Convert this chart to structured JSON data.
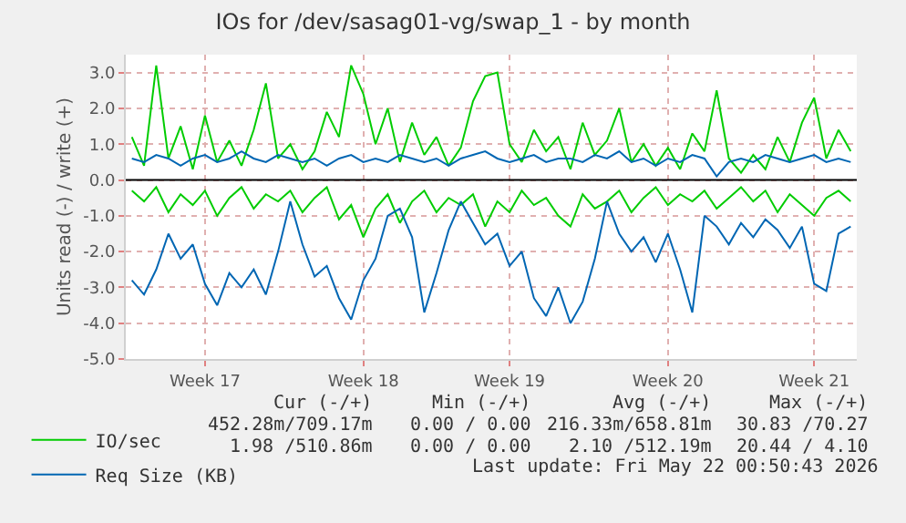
{
  "chart_data": {
    "type": "line",
    "title": "IOs for /dev/sasag01-vg/swap_1 - by month",
    "ylabel": "Units read (-) / write (+)",
    "categories": [
      null,
      null,
      null,
      null,
      null,
      null,
      "Week 17",
      null,
      null,
      null,
      null,
      null,
      null,
      null,
      null,
      null,
      null,
      null,
      null,
      "Week 18",
      null,
      null,
      null,
      null,
      null,
      null,
      null,
      null,
      null,
      null,
      null,
      "Week 19",
      null,
      null,
      null,
      null,
      null,
      null,
      null,
      null,
      null,
      null,
      null,
      null,
      "Week 20",
      null,
      null,
      null,
      null,
      null,
      null,
      null,
      null,
      null,
      null,
      null,
      "Week 21",
      null,
      null,
      null
    ],
    "series": [
      {
        "name": "IO/sec",
        "color": "#00cc00",
        "values": [
          1.2,
          0.4,
          3.2,
          0.6,
          1.5,
          0.3,
          1.8,
          0.5,
          1.1,
          0.4,
          1.4,
          2.7,
          0.6,
          1.0,
          0.3,
          0.8,
          1.9,
          1.2,
          3.2,
          2.4,
          1.0,
          2.0,
          0.5,
          1.6,
          0.7,
          1.2,
          0.4,
          0.9,
          2.2,
          2.9,
          3.0,
          1.0,
          0.5,
          1.4,
          0.8,
          1.2,
          0.3,
          1.6,
          0.7,
          1.1,
          2.0,
          0.5,
          1.0,
          0.4,
          0.9,
          0.3,
          1.3,
          0.8,
          2.5,
          0.6,
          0.2,
          0.7,
          0.3,
          1.2,
          0.5,
          1.6,
          2.3,
          0.6,
          1.4,
          0.8
        ]
      },
      {
        "color": "#00cc00",
        "values": [
          -0.3,
          -0.6,
          -0.2,
          -0.9,
          -0.4,
          -0.7,
          -0.3,
          -1.0,
          -0.5,
          -0.2,
          -0.8,
          -0.4,
          -0.6,
          -0.3,
          -0.9,
          -0.5,
          -0.2,
          -1.1,
          -0.7,
          -1.6,
          -0.8,
          -0.4,
          -1.2,
          -0.6,
          -0.3,
          -0.9,
          -0.5,
          -0.7,
          -0.4,
          -1.3,
          -0.6,
          -0.9,
          -0.3,
          -0.7,
          -0.5,
          -1.0,
          -1.3,
          -0.4,
          -0.8,
          -0.6,
          -0.3,
          -0.9,
          -0.5,
          -0.2,
          -0.7,
          -0.4,
          -0.6,
          -0.3,
          -0.8,
          -0.5,
          -0.2,
          -0.6,
          -0.3,
          -0.9,
          -0.4,
          -0.7,
          -1.0,
          -0.5,
          -0.3,
          -0.6
        ]
      },
      {
        "name": "Req Size (KB)",
        "color": "#0066b3",
        "values": [
          0.6,
          0.5,
          0.7,
          0.6,
          0.4,
          0.6,
          0.7,
          0.5,
          0.6,
          0.8,
          0.6,
          0.5,
          0.7,
          0.6,
          0.5,
          0.6,
          0.4,
          0.6,
          0.7,
          0.5,
          0.6,
          0.5,
          0.7,
          0.6,
          0.5,
          0.6,
          0.4,
          0.6,
          0.7,
          0.8,
          0.6,
          0.5,
          0.6,
          0.7,
          0.5,
          0.6,
          0.6,
          0.5,
          0.7,
          0.6,
          0.8,
          0.5,
          0.6,
          0.4,
          0.6,
          0.5,
          0.7,
          0.6,
          0.1,
          0.5,
          0.6,
          0.5,
          0.7,
          0.6,
          0.5,
          0.6,
          0.7,
          0.5,
          0.6,
          0.5
        ]
      },
      {
        "color": "#0066b3",
        "values": [
          -2.8,
          -3.2,
          -2.5,
          -1.5,
          -2.2,
          -1.8,
          -2.9,
          -3.5,
          -2.6,
          -3.0,
          -2.5,
          -3.2,
          -2.0,
          -0.6,
          -1.8,
          -2.7,
          -2.4,
          -3.3,
          -3.9,
          -2.8,
          -2.2,
          -1.0,
          -0.8,
          -1.6,
          -3.7,
          -2.6,
          -1.4,
          -0.6,
          -1.2,
          -1.8,
          -1.5,
          -2.4,
          -2.0,
          -3.3,
          -3.8,
          -3.0,
          -4.0,
          -3.4,
          -2.2,
          -0.6,
          -1.5,
          -2.0,
          -1.6,
          -2.3,
          -1.5,
          -2.5,
          -3.7,
          -1.0,
          -1.3,
          -1.8,
          -1.2,
          -1.6,
          -1.1,
          -1.4,
          -1.9,
          -1.3,
          -2.9,
          -3.1,
          -1.5,
          -1.3
        ]
      }
    ],
    "ylim": [
      -5,
      3.5
    ],
    "yticks": [
      {
        "value": -5,
        "label": "-5.0"
      },
      {
        "value": -4,
        "label": "-4.0"
      },
      {
        "value": -3,
        "label": "-3.0"
      },
      {
        "value": -2,
        "label": "-2.0"
      },
      {
        "value": -1,
        "label": "-1.0"
      },
      {
        "value": 0,
        "label": "0.0"
      },
      {
        "value": 1,
        "label": "1.0"
      },
      {
        "value": 2,
        "label": "2.0"
      },
      {
        "value": 3,
        "label": "3.0"
      }
    ],
    "ref_lines": [
      {
        "axis": "y",
        "value": 0,
        "color": "#000000"
      }
    ],
    "grid": true,
    "legend": "bottom left",
    "line_style": "solid",
    "marker": "none",
    "annotations": [
      "Cur (-/+)",
      "Min (-/+)",
      "Avg (-/+)",
      "Max (-/+)",
      "452.28m/709.17m",
      "0.00 / 0.00",
      "216.33m/658.81m",
      "30.83 /70.27",
      "1.98 /510.86m",
      "0.00 / 0.00",
      "2.10 /512.19m",
      "20.44 / 4.10",
      "Last update: Fri May 22 00:50:43 2026"
    ]
  }
}
